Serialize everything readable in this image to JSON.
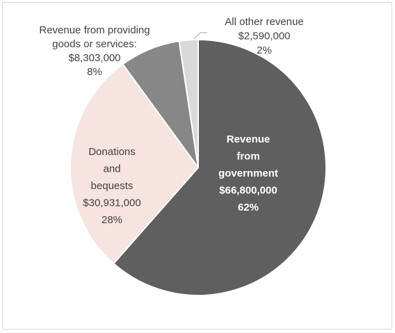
{
  "chart_data": {
    "type": "pie",
    "title": "",
    "legend": "none",
    "slices": [
      {
        "category": "Revenue from government",
        "value": 66800000,
        "value_label": "$66,800,000",
        "percent_label": "62%",
        "color": "#5f5f5f",
        "label_color": "#ffffff",
        "label_lines": [
          "Revenue",
          "from",
          "government"
        ]
      },
      {
        "category": "Donations and bequests",
        "value": 30931000,
        "value_label": "$30,931,000",
        "percent_label": "28%",
        "color": "#f5e4df",
        "label_color": "#404040",
        "label_lines": [
          "Donations",
          "and",
          "bequests"
        ]
      },
      {
        "category": "Revenue from providing goods or services:",
        "value": 8303000,
        "value_label": "$8,303,000",
        "percent_label": "8%",
        "color": "#878787",
        "label_color": "#404040",
        "label_lines": [
          "Revenue from providing",
          "goods or services:"
        ]
      },
      {
        "category": "All other revenue",
        "value": 2590000,
        "value_label": "$2,590,000",
        "percent_label": "2%",
        "color": "#d9d9d9",
        "label_color": "#404040",
        "label_lines": [
          "All other revenue"
        ]
      }
    ]
  }
}
